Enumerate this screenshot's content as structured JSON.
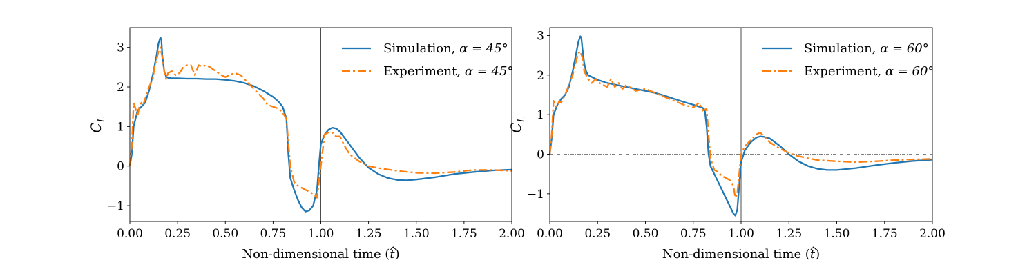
{
  "chart_data": [
    {
      "type": "line",
      "xlabel": "Non-dimensional time ($\\hat{t}$)",
      "xlabel_parts": [
        "Non-dimensional time (",
        "t",
        ")"
      ],
      "ylabel": "C_L",
      "ylabel_parts": {
        "main": "C",
        "sub": "L"
      },
      "xlim": [
        0.0,
        2.0
      ],
      "ylim": [
        -1.4,
        3.5
      ],
      "xticks": [
        0.0,
        0.25,
        0.5,
        0.75,
        1.0,
        1.25,
        1.5,
        1.75,
        2.0
      ],
      "xtick_labels": [
        "0.00",
        "0.25",
        "0.50",
        "0.75",
        "1.00",
        "1.25",
        "1.50",
        "1.75",
        "2.00"
      ],
      "yticks": [
        -1,
        0,
        1,
        2,
        3
      ],
      "ytick_labels": [
        "−1",
        "0",
        "1",
        "2",
        "3"
      ],
      "vline_x": 1.0,
      "hline_y": 0.0,
      "legend_position": "top-right",
      "series": [
        {
          "name": "Simulation, α = 45°",
          "name_prefix": "Simulation, ",
          "angle_text": "α = 45°",
          "color": "#1f77b4",
          "style": "solid",
          "x": [
            0.0,
            0.01,
            0.02,
            0.04,
            0.06,
            0.08,
            0.1,
            0.12,
            0.14,
            0.15,
            0.16,
            0.165,
            0.17,
            0.18,
            0.19,
            0.2,
            0.22,
            0.25,
            0.3,
            0.35,
            0.4,
            0.45,
            0.5,
            0.55,
            0.6,
            0.65,
            0.7,
            0.75,
            0.78,
            0.8,
            0.82,
            0.83,
            0.84,
            0.86,
            0.88,
            0.9,
            0.92,
            0.94,
            0.96,
            0.98,
            0.99,
            1.0,
            1.02,
            1.04,
            1.06,
            1.08,
            1.1,
            1.15,
            1.2,
            1.25,
            1.3,
            1.35,
            1.4,
            1.45,
            1.5,
            1.6,
            1.7,
            1.8,
            1.9,
            2.0
          ],
          "y": [
            0.0,
            0.3,
            1.0,
            1.4,
            1.5,
            1.6,
            1.9,
            2.3,
            2.8,
            3.1,
            3.25,
            3.2,
            2.8,
            2.4,
            2.26,
            2.23,
            2.22,
            2.22,
            2.21,
            2.21,
            2.2,
            2.2,
            2.18,
            2.15,
            2.1,
            2.02,
            1.9,
            1.75,
            1.62,
            1.5,
            1.2,
            0.3,
            -0.3,
            -0.6,
            -0.85,
            -1.05,
            -1.15,
            -1.12,
            -1.0,
            -0.6,
            0.0,
            0.55,
            0.8,
            0.92,
            0.97,
            0.95,
            0.87,
            0.55,
            0.22,
            -0.04,
            -0.2,
            -0.3,
            -0.35,
            -0.36,
            -0.34,
            -0.28,
            -0.2,
            -0.15,
            -0.11,
            -0.09
          ]
        },
        {
          "name": "Experiment, α = 45°",
          "name_prefix": "Experiment, ",
          "angle_text": "α = 45°",
          "color": "#ff7f0e",
          "style": "dashdot",
          "x": [
            0.0,
            0.01,
            0.02,
            0.03,
            0.04,
            0.05,
            0.06,
            0.07,
            0.08,
            0.1,
            0.12,
            0.13,
            0.14,
            0.15,
            0.16,
            0.17,
            0.18,
            0.19,
            0.2,
            0.22,
            0.24,
            0.26,
            0.28,
            0.3,
            0.32,
            0.34,
            0.36,
            0.38,
            0.4,
            0.42,
            0.45,
            0.48,
            0.5,
            0.52,
            0.55,
            0.58,
            0.6,
            0.62,
            0.65,
            0.68,
            0.7,
            0.72,
            0.75,
            0.78,
            0.8,
            0.82,
            0.83,
            0.84,
            0.86,
            0.88,
            0.9,
            0.92,
            0.94,
            0.96,
            0.98,
            1.0,
            1.02,
            1.04,
            1.06,
            1.08,
            1.1,
            1.12,
            1.15,
            1.2,
            1.25,
            1.3,
            1.4,
            1.5,
            1.6,
            1.7,
            1.8,
            1.9,
            2.0
          ],
          "y": [
            0.0,
            0.5,
            1.6,
            1.45,
            1.25,
            1.5,
            1.6,
            1.55,
            1.7,
            2.0,
            2.2,
            2.5,
            2.7,
            2.9,
            3.0,
            2.75,
            2.4,
            2.2,
            2.35,
            2.4,
            2.3,
            2.35,
            2.5,
            2.55,
            2.55,
            2.3,
            2.55,
            2.52,
            2.55,
            2.5,
            2.4,
            2.3,
            2.25,
            2.3,
            2.35,
            2.3,
            2.2,
            2.1,
            1.95,
            1.8,
            1.7,
            1.55,
            1.5,
            1.45,
            1.35,
            1.2,
            0.6,
            0.0,
            -0.4,
            -0.5,
            -0.55,
            -0.6,
            -0.65,
            -0.7,
            -0.8,
            0.0,
            0.8,
            0.85,
            0.85,
            0.75,
            0.75,
            0.55,
            0.3,
            0.12,
            0.0,
            -0.05,
            -0.12,
            -0.17,
            -0.18,
            -0.15,
            -0.1,
            -0.1,
            -0.12
          ]
        }
      ]
    },
    {
      "type": "line",
      "xlabel": "Non-dimensional time ($\\hat{t}$)",
      "xlabel_parts": [
        "Non-dimensional time (",
        "t",
        ")"
      ],
      "ylabel": "C_L",
      "ylabel_parts": {
        "main": "C",
        "sub": "L"
      },
      "xlim": [
        0.0,
        2.0
      ],
      "ylim": [
        -1.7,
        3.2
      ],
      "xticks": [
        0.0,
        0.25,
        0.5,
        0.75,
        1.0,
        1.25,
        1.5,
        1.75,
        2.0
      ],
      "xtick_labels": [
        "0.00",
        "0.25",
        "0.50",
        "0.75",
        "1.00",
        "1.25",
        "1.50",
        "1.75",
        "2.00"
      ],
      "yticks": [
        -1,
        0,
        1,
        2,
        3
      ],
      "ytick_labels": [
        "−1",
        "0",
        "1",
        "2",
        "3"
      ],
      "vline_x": 1.0,
      "hline_y": 0.0,
      "legend_position": "top-right",
      "series": [
        {
          "name": "Simulation, α = 60°",
          "name_prefix": "Simulation, ",
          "angle_text": "α = 60°",
          "color": "#1f77b4",
          "style": "solid",
          "x": [
            0.0,
            0.01,
            0.02,
            0.04,
            0.06,
            0.08,
            0.1,
            0.12,
            0.14,
            0.15,
            0.16,
            0.165,
            0.17,
            0.18,
            0.19,
            0.2,
            0.25,
            0.3,
            0.35,
            0.4,
            0.45,
            0.5,
            0.55,
            0.6,
            0.65,
            0.7,
            0.75,
            0.8,
            0.81,
            0.82,
            0.83,
            0.84,
            0.86,
            0.88,
            0.9,
            0.92,
            0.94,
            0.96,
            0.97,
            0.98,
            1.0,
            1.02,
            1.05,
            1.08,
            1.1,
            1.12,
            1.15,
            1.2,
            1.25,
            1.3,
            1.35,
            1.4,
            1.45,
            1.5,
            1.6,
            1.7,
            1.8,
            1.9,
            2.0
          ],
          "y": [
            0.0,
            0.4,
            1.0,
            1.25,
            1.4,
            1.5,
            1.7,
            2.1,
            2.6,
            2.85,
            2.98,
            2.95,
            2.7,
            2.3,
            2.1,
            2.0,
            1.88,
            1.8,
            1.75,
            1.7,
            1.65,
            1.6,
            1.55,
            1.48,
            1.4,
            1.32,
            1.25,
            1.17,
            1.12,
            0.7,
            0.0,
            -0.3,
            -0.5,
            -0.7,
            -0.9,
            -1.1,
            -1.3,
            -1.5,
            -1.55,
            -1.4,
            -0.2,
            0.1,
            0.3,
            0.42,
            0.45,
            0.44,
            0.4,
            0.22,
            0.0,
            -0.18,
            -0.3,
            -0.37,
            -0.4,
            -0.4,
            -0.35,
            -0.28,
            -0.22,
            -0.17,
            -0.14
          ]
        },
        {
          "name": "Experiment, α = 60°",
          "name_prefix": "Experiment, ",
          "angle_text": "α = 60°",
          "color": "#ff7f0e",
          "style": "dashdot",
          "x": [
            0.0,
            0.01,
            0.02,
            0.03,
            0.04,
            0.05,
            0.06,
            0.07,
            0.08,
            0.1,
            0.12,
            0.14,
            0.15,
            0.16,
            0.17,
            0.18,
            0.2,
            0.22,
            0.24,
            0.26,
            0.28,
            0.3,
            0.32,
            0.34,
            0.36,
            0.38,
            0.4,
            0.45,
            0.5,
            0.55,
            0.6,
            0.65,
            0.7,
            0.72,
            0.75,
            0.78,
            0.8,
            0.82,
            0.83,
            0.84,
            0.86,
            0.88,
            0.9,
            0.92,
            0.94,
            0.96,
            0.97,
            0.98,
            1.0,
            1.02,
            1.05,
            1.08,
            1.1,
            1.12,
            1.15,
            1.2,
            1.25,
            1.3,
            1.4,
            1.5,
            1.6,
            1.7,
            1.8,
            1.9,
            2.0
          ],
          "y": [
            0.0,
            0.5,
            1.35,
            1.2,
            1.25,
            1.35,
            1.3,
            1.4,
            1.5,
            1.75,
            2.0,
            2.4,
            2.55,
            2.6,
            2.45,
            2.1,
            1.9,
            1.8,
            1.9,
            1.8,
            1.75,
            1.7,
            1.9,
            1.7,
            1.8,
            1.65,
            1.75,
            1.6,
            1.65,
            1.55,
            1.45,
            1.35,
            1.25,
            1.22,
            1.18,
            1.3,
            1.1,
            1.15,
            0.5,
            -0.1,
            -0.4,
            -0.45,
            -0.55,
            -0.6,
            -0.65,
            -0.8,
            -1.1,
            -1.0,
            0.0,
            0.2,
            0.35,
            0.5,
            0.55,
            0.45,
            0.3,
            0.15,
            0.03,
            -0.05,
            -0.15,
            -0.18,
            -0.2,
            -0.18,
            -0.15,
            -0.13,
            -0.12
          ]
        }
      ]
    }
  ]
}
